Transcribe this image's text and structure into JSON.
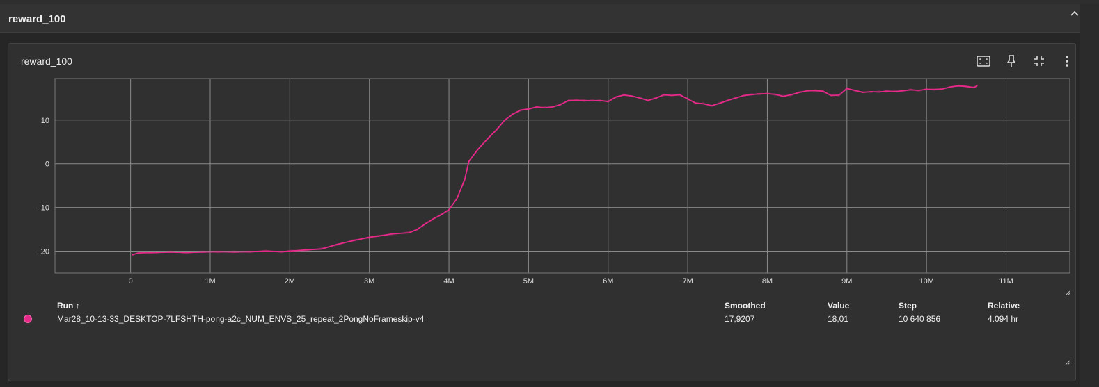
{
  "group": {
    "title": "reward_100"
  },
  "card": {
    "title": "reward_100",
    "icons": [
      "fit-domain-icon",
      "pin-icon",
      "collapse-icon",
      "more-vert-icon"
    ]
  },
  "legend": {
    "headers": {
      "run": "Run ↑",
      "smoothed": "Smoothed",
      "value": "Value",
      "step": "Step",
      "relative": "Relative"
    },
    "rows": [
      {
        "run": "Mar28_10-13-33_DESKTOP-7LFSHTH-pong-a2c_NUM_ENVS_25_repeat_2PongNoFrameskip-v4",
        "smoothed": "17,9207",
        "value": "18,01",
        "step": "10 640 856",
        "relative": "4.094 hr",
        "color": "#e7298a"
      }
    ]
  },
  "chart_data": {
    "type": "line",
    "title": "reward_100",
    "xlabel": "",
    "ylabel": "",
    "xlim": [
      -0.95,
      11.8
    ],
    "ylim": [
      -25,
      19.5
    ],
    "x_ticks": [
      0,
      1,
      2,
      3,
      4,
      5,
      6,
      7,
      8,
      9,
      10,
      11
    ],
    "x_tick_labels": [
      "0",
      "1M",
      "2M",
      "3M",
      "4M",
      "5M",
      "6M",
      "7M",
      "8M",
      "9M",
      "10M",
      "11M"
    ],
    "y_ticks": [
      -20,
      -10,
      0,
      10
    ],
    "y_tick_labels": [
      "-20",
      "-10",
      "0",
      "10"
    ],
    "grid": true,
    "series": [
      {
        "name": "Mar28_10-13-33_DESKTOP-7LFSHTH-pong-a2c_NUM_ENVS_25_repeat_2PongNoFrameskip-v4",
        "color": "#e7298a",
        "x": [
          0.02,
          0.1,
          0.3,
          0.5,
          0.7,
          0.9,
          1.1,
          1.3,
          1.5,
          1.7,
          1.9,
          2.0,
          2.2,
          2.4,
          2.6,
          2.8,
          3.0,
          3.1,
          3.3,
          3.5,
          3.6,
          3.7,
          3.8,
          3.9,
          4.0,
          4.1,
          4.2,
          4.25,
          4.35,
          4.4,
          4.5,
          4.6,
          4.7,
          4.8,
          4.9,
          5.0,
          5.1,
          5.2,
          5.3,
          5.4,
          5.5,
          5.6,
          5.7,
          5.8,
          5.9,
          6.0,
          6.1,
          6.2,
          6.3,
          6.4,
          6.5,
          6.6,
          6.7,
          6.8,
          6.9,
          7.0,
          7.1,
          7.2,
          7.3,
          7.4,
          7.5,
          7.6,
          7.7,
          7.8,
          7.9,
          8.0,
          8.1,
          8.2,
          8.3,
          8.4,
          8.5,
          8.6,
          8.7,
          8.8,
          8.9,
          9.0,
          9.1,
          9.2,
          9.3,
          9.4,
          9.5,
          9.6,
          9.7,
          9.8,
          9.9,
          10.0,
          10.1,
          10.2,
          10.3,
          10.4,
          10.5,
          10.6,
          10.64
        ],
        "y": [
          -20.8,
          -20.4,
          -20.3,
          -20.2,
          -20.3,
          -20.2,
          -20.1,
          -20.2,
          -20.1,
          -20.0,
          -20.1,
          -20.0,
          -19.7,
          -19.5,
          -18.4,
          -17.6,
          -16.8,
          -16.6,
          -16.0,
          -15.8,
          -15.0,
          -13.8,
          -12.6,
          -11.7,
          -10.5,
          -8.0,
          -3.5,
          0.5,
          3.0,
          4.0,
          6.0,
          7.8,
          10.0,
          11.3,
          12.3,
          12.5,
          13.0,
          12.8,
          13.0,
          13.5,
          14.5,
          14.5,
          14.5,
          14.4,
          14.5,
          14.2,
          15.3,
          15.7,
          15.5,
          15.0,
          14.5,
          15.0,
          15.8,
          15.6,
          15.8,
          14.8,
          13.9,
          13.7,
          13.3,
          13.8,
          14.5,
          15.0,
          15.6,
          15.8,
          16.0,
          16.0,
          15.9,
          15.4,
          15.8,
          16.3,
          16.7,
          16.7,
          16.6,
          15.6,
          15.7,
          17.2,
          16.8,
          16.3,
          16.5,
          16.4,
          16.6,
          16.5,
          16.7,
          16.9,
          16.8,
          17.0,
          17.0,
          17.1,
          17.6,
          17.8,
          17.7,
          17.4,
          18.0
        ]
      }
    ]
  }
}
